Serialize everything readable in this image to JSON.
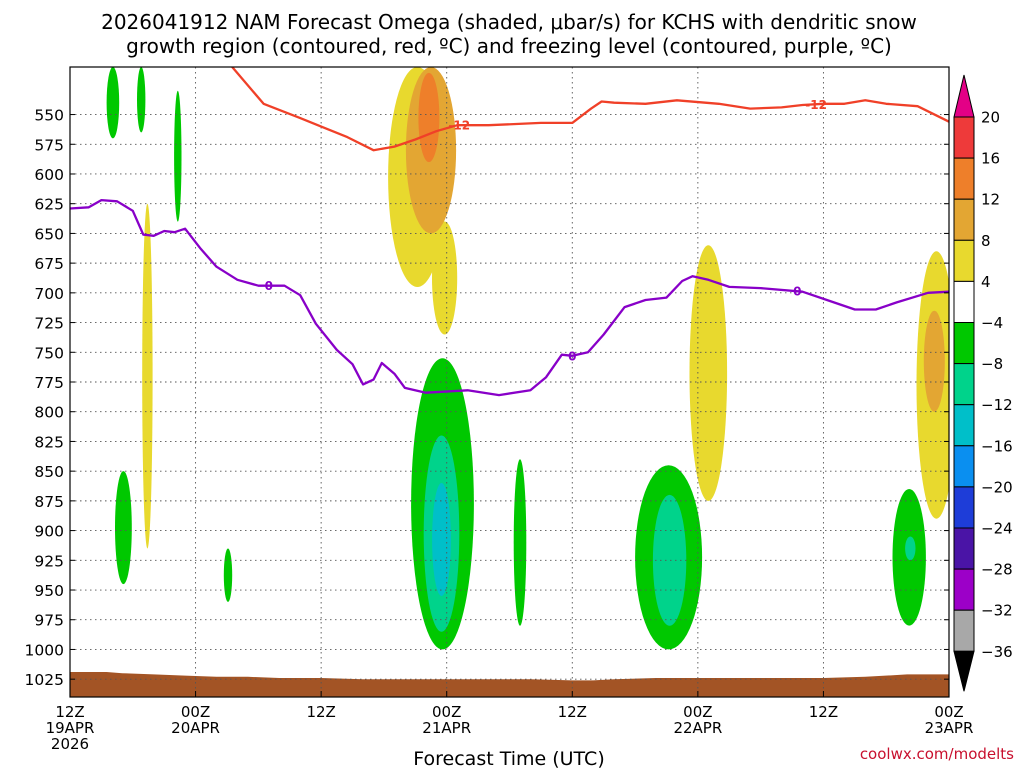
{
  "chart_data": {
    "type": "time-height-contour",
    "title_lines": [
      "2026041912 NAM Forecast Omega (shaded, μbar/s) for KCHS with dendritic snow",
      "growth region (contoured, red, ºC) and freezing level (contoured, purple, ºC)"
    ],
    "xlabel": "Forecast Time (UTC)",
    "credit": "coolwx.com/modelts",
    "x_unit": "hours since 2026-04-19 12Z",
    "xlim": [
      0,
      84
    ],
    "x_ticks": [
      {
        "hour": 0,
        "lines": [
          "12Z",
          "19APR",
          "2026"
        ]
      },
      {
        "hour": 12,
        "lines": [
          "00Z",
          "20APR"
        ]
      },
      {
        "hour": 24,
        "lines": [
          "12Z"
        ]
      },
      {
        "hour": 36,
        "lines": [
          "00Z",
          "21APR"
        ]
      },
      {
        "hour": 48,
        "lines": [
          "12Z"
        ]
      },
      {
        "hour": 60,
        "lines": [
          "00Z",
          "22APR"
        ]
      },
      {
        "hour": 72,
        "lines": [
          "12Z"
        ]
      },
      {
        "hour": 84,
        "lines": [
          "00Z",
          "23APR"
        ]
      }
    ],
    "y_unit": "hPa",
    "ylim": [
      1040,
      510
    ],
    "y_ticks": [
      550,
      575,
      600,
      625,
      650,
      675,
      700,
      725,
      750,
      775,
      800,
      825,
      850,
      875,
      900,
      925,
      950,
      975,
      1000,
      1025
    ],
    "grid": "dotted",
    "colorbar": {
      "label_values": [
        20,
        16,
        12,
        8,
        4,
        -4,
        -8,
        -12,
        -16,
        -20,
        -24,
        -28,
        -32,
        -36
      ],
      "colors": [
        "#e30086",
        "#ee3a3a",
        "#ee7f2a",
        "#e3a633",
        "#e8d92e",
        "#ffffff",
        "#00c800",
        "#00d38b",
        "#00bfc9",
        "#0a8ff0",
        "#1e3dd8",
        "#4a14a6",
        "#9c00c8",
        "#a8a8a8",
        "#000000"
      ]
    },
    "omega_regions": [
      {
        "level": "4 to 8",
        "color": "#e8d92e",
        "hour_center": 33.2,
        "hour_halfwidth": 2.8,
        "p_top": 510,
        "p_bottom": 695
      },
      {
        "level": "4 to 8",
        "color": "#e8d92e",
        "hour_center": 35.8,
        "hour_halfwidth": 1.2,
        "p_top": 640,
        "p_bottom": 735
      },
      {
        "level": "8 to 12",
        "color": "#e3a633",
        "hour_center": 34.5,
        "hour_halfwidth": 2.4,
        "p_top": 510,
        "p_bottom": 650
      },
      {
        "level": "12 to 16",
        "color": "#ee7f2a",
        "hour_center": 34.3,
        "hour_halfwidth": 1.0,
        "p_top": 515,
        "p_bottom": 590
      },
      {
        "level": "4 to 8",
        "color": "#e8d92e",
        "hour_center": 7.4,
        "hour_halfwidth": 0.5,
        "p_top": 625,
        "p_bottom": 915
      },
      {
        "level": "4 to 8",
        "color": "#e8d92e",
        "hour_center": 61.0,
        "hour_halfwidth": 1.8,
        "p_top": 660,
        "p_bottom": 875
      },
      {
        "level": "4 to 8",
        "color": "#e8d92e",
        "hour_center": 82.8,
        "hour_halfwidth": 1.9,
        "p_top": 665,
        "p_bottom": 890
      },
      {
        "level": "8 to 12",
        "color": "#e3a633",
        "hour_center": 82.6,
        "hour_halfwidth": 1.0,
        "p_top": 715,
        "p_bottom": 800
      },
      {
        "level": "-8 to -4",
        "color": "#00c800",
        "hour_center": 4.1,
        "hour_halfwidth": 0.6,
        "p_top": 510,
        "p_bottom": 570
      },
      {
        "level": "-8 to -4",
        "color": "#00c800",
        "hour_center": 6.8,
        "hour_halfwidth": 0.4,
        "p_top": 510,
        "p_bottom": 565
      },
      {
        "level": "-8 to -4",
        "color": "#00c800",
        "hour_center": 10.3,
        "hour_halfwidth": 0.35,
        "p_top": 530,
        "p_bottom": 640
      },
      {
        "level": "-8 to -4",
        "color": "#00c800",
        "hour_center": 5.1,
        "hour_halfwidth": 0.8,
        "p_top": 850,
        "p_bottom": 945
      },
      {
        "level": "-8 to -4",
        "color": "#00c800",
        "hour_center": 15.1,
        "hour_halfwidth": 0.4,
        "p_top": 915,
        "p_bottom": 960
      },
      {
        "level": "-8 to -4",
        "color": "#00c800",
        "hour_center": 35.6,
        "hour_halfwidth": 3.0,
        "p_top": 755,
        "p_bottom": 1000
      },
      {
        "level": "-12 to -8",
        "color": "#00d38b",
        "hour_center": 35.5,
        "hour_halfwidth": 1.7,
        "p_top": 820,
        "p_bottom": 985
      },
      {
        "level": "-16 to -12",
        "color": "#00bfc9",
        "hour_center": 35.5,
        "hour_halfwidth": 0.9,
        "p_top": 860,
        "p_bottom": 955
      },
      {
        "level": "-8 to -4",
        "color": "#00c800",
        "hour_center": 43.0,
        "hour_halfwidth": 0.6,
        "p_top": 840,
        "p_bottom": 980
      },
      {
        "level": "-8 to -4",
        "color": "#00c800",
        "hour_center": 57.2,
        "hour_halfwidth": 3.2,
        "p_top": 845,
        "p_bottom": 1000
      },
      {
        "level": "-12 to -8",
        "color": "#00d38b",
        "hour_center": 57.3,
        "hour_halfwidth": 1.6,
        "p_top": 870,
        "p_bottom": 980
      },
      {
        "level": "-8 to -4",
        "color": "#00c800",
        "hour_center": 80.2,
        "hour_halfwidth": 1.6,
        "p_top": 865,
        "p_bottom": 980
      },
      {
        "level": "-12 to -8",
        "color": "#00d38b",
        "hour_center": 80.3,
        "hour_halfwidth": 0.5,
        "p_top": 905,
        "p_bottom": 925
      }
    ],
    "dgz_contour": {
      "name": "-12 ºC isotherm",
      "color": "#f04028",
      "label": "-12",
      "label_hours": [
        37.2,
        71.3
      ],
      "points": [
        [
          15.5,
          510
        ],
        [
          18.5,
          541
        ],
        [
          22.0,
          553
        ],
        [
          26.5,
          569
        ],
        [
          29.0,
          580
        ],
        [
          31.0,
          577
        ],
        [
          33.0,
          571
        ],
        [
          35.0,
          564
        ],
        [
          37.0,
          559
        ],
        [
          40.0,
          559
        ],
        [
          45.0,
          557
        ],
        [
          48.0,
          557
        ],
        [
          49.8,
          545
        ],
        [
          50.8,
          539
        ],
        [
          52.0,
          540
        ],
        [
          55.0,
          541
        ],
        [
          58.0,
          538
        ],
        [
          62.0,
          541
        ],
        [
          65.0,
          545
        ],
        [
          68.0,
          544
        ],
        [
          70.0,
          542
        ],
        [
          72.0,
          541
        ],
        [
          74.0,
          541
        ],
        [
          76.0,
          538
        ],
        [
          78.0,
          541
        ],
        [
          81.0,
          543
        ],
        [
          84.0,
          556
        ]
      ]
    },
    "freezing_level": {
      "name": "0 ºC isotherm",
      "color": "#8800c8",
      "label": "0",
      "label_hours": [
        19.0,
        48.0,
        69.5
      ],
      "points": [
        [
          0,
          629
        ],
        [
          1.8,
          628
        ],
        [
          3.0,
          622
        ],
        [
          4.5,
          623
        ],
        [
          6.0,
          631
        ],
        [
          7.0,
          651
        ],
        [
          8.0,
          652
        ],
        [
          9.0,
          648
        ],
        [
          10.0,
          649
        ],
        [
          11.0,
          646
        ],
        [
          12.5,
          663
        ],
        [
          14.0,
          678
        ],
        [
          16.0,
          689
        ],
        [
          18.0,
          694
        ],
        [
          20.5,
          694
        ],
        [
          22.0,
          702
        ],
        [
          23.5,
          726
        ],
        [
          25.5,
          748
        ],
        [
          27.0,
          760
        ],
        [
          28.0,
          777
        ],
        [
          29.0,
          773
        ],
        [
          29.8,
          759
        ],
        [
          31.0,
          768
        ],
        [
          32.0,
          780
        ],
        [
          34.0,
          784
        ],
        [
          38.0,
          782
        ],
        [
          41.0,
          786
        ],
        [
          44.0,
          782
        ],
        [
          45.5,
          771
        ],
        [
          47.0,
          752
        ],
        [
          48.0,
          753
        ],
        [
          49.5,
          750
        ],
        [
          51.0,
          735
        ],
        [
          53.0,
          712
        ],
        [
          55.0,
          706
        ],
        [
          57.0,
          704
        ],
        [
          58.5,
          690
        ],
        [
          59.5,
          686
        ],
        [
          61.0,
          689
        ],
        [
          63.0,
          695
        ],
        [
          66.0,
          696
        ],
        [
          70.0,
          699
        ],
        [
          73.0,
          708
        ],
        [
          75.0,
          714
        ],
        [
          77.0,
          714
        ],
        [
          79.0,
          708
        ],
        [
          82.0,
          700
        ],
        [
          84.0,
          699
        ]
      ]
    },
    "terrain": {
      "color": "#a35425",
      "p_bottom": 1040,
      "top_profile": [
        [
          0,
          1019
        ],
        [
          3.5,
          1019
        ],
        [
          5.0,
          1020
        ],
        [
          8.0,
          1021
        ],
        [
          11.0,
          1022
        ],
        [
          14.0,
          1023
        ],
        [
          17.0,
          1023
        ],
        [
          20.0,
          1024
        ],
        [
          24.0,
          1024
        ],
        [
          28.0,
          1025
        ],
        [
          36.0,
          1025
        ],
        [
          44.0,
          1025
        ],
        [
          48.0,
          1026
        ],
        [
          50.0,
          1026
        ],
        [
          52.0,
          1025
        ],
        [
          56.0,
          1024
        ],
        [
          60.0,
          1024
        ],
        [
          64.0,
          1024
        ],
        [
          68.0,
          1024
        ],
        [
          72.0,
          1024
        ],
        [
          76.0,
          1023
        ],
        [
          80.0,
          1021
        ],
        [
          84.0,
          1021
        ]
      ]
    }
  }
}
